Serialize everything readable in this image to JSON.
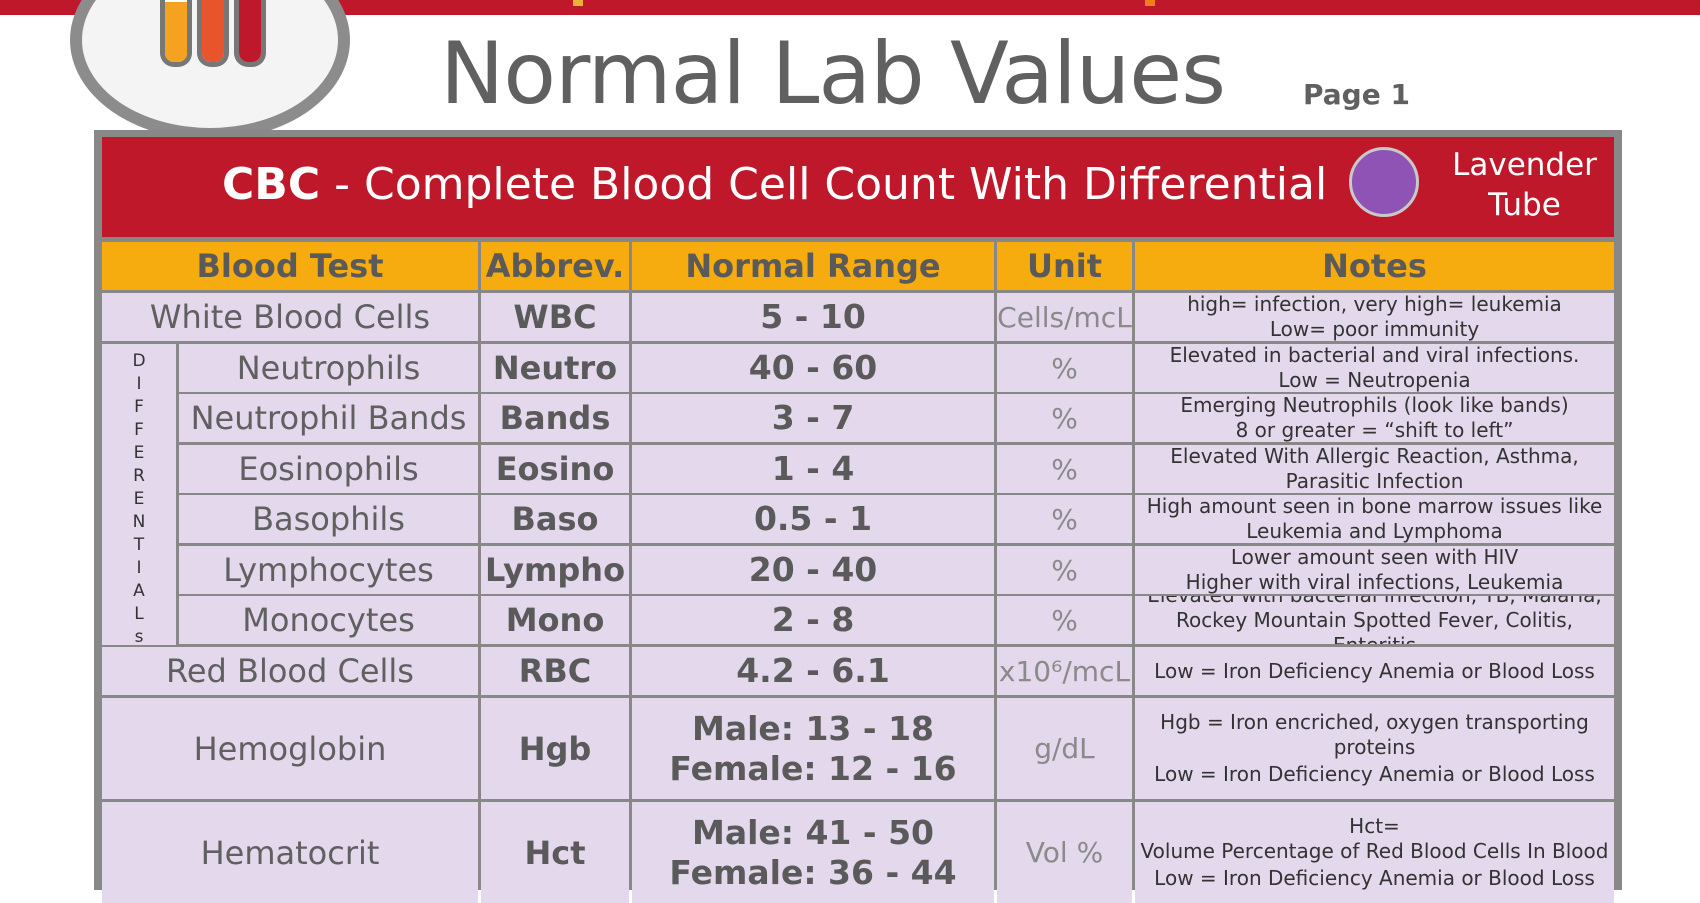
{
  "header": {
    "title": "Normal Lab Values",
    "page_label": "Page 1"
  },
  "banner": {
    "abbr": "CBC",
    "title_rest": " - Complete Blood Cell Count With Differential",
    "tube_line1": "Lavender",
    "tube_line2": "Tube",
    "tube_color": "#8e53b5"
  },
  "columns": {
    "test": "Blood Test",
    "abbr": "Abbrev.",
    "range": "Normal Range",
    "unit": "Unit",
    "notes": "Notes"
  },
  "differentials_label": [
    "D",
    "I",
    "F",
    "F",
    "E",
    "R",
    "E",
    "N",
    "T",
    "I",
    "A",
    "L",
    "s"
  ],
  "rows": [
    {
      "test": "White Blood Cells",
      "abbr": "WBC",
      "range1": "5 - 10",
      "range2": "",
      "unit": "Cells/mcL",
      "note1": "high= infection, very high= leukemia",
      "note2": "Low= poor immunity",
      "note3": ""
    },
    {
      "test": "Neutrophils",
      "abbr": "Neutro",
      "range1": "40 - 60",
      "range2": "",
      "unit": "%",
      "note1": "Elevated in bacterial and viral infections.",
      "note2": "Low = Neutropenia",
      "note3": ""
    },
    {
      "test": "Neutrophil Bands",
      "abbr": "Bands",
      "range1": "3  - 7",
      "range2": "",
      "unit": "%",
      "note1": "Emerging Neutrophils (look like bands)",
      "note2": "8 or greater = “shift to left”",
      "note3": ""
    },
    {
      "test": "Eosinophils",
      "abbr": "Eosino",
      "range1": "1 - 4",
      "range2": "",
      "unit": "%",
      "note1": "Elevated With Allergic Reaction, Asthma,",
      "note2": "Parasitic Infection",
      "note3": ""
    },
    {
      "test": "Basophils",
      "abbr": "Baso",
      "range1": "0.5 - 1",
      "range2": "",
      "unit": "%",
      "note1": "High amount seen in bone marrow issues like",
      "note2": "Leukemia and Lymphoma",
      "note3": ""
    },
    {
      "test": "Lymphocytes",
      "abbr": "Lympho",
      "range1": "20 - 40",
      "range2": "",
      "unit": "%",
      "note1": "Lower amount seen with HIV",
      "note2": "Higher with viral infections, Leukemia",
      "note3": ""
    },
    {
      "test": "Monocytes",
      "abbr": "Mono",
      "range1": "2 - 8",
      "range2": "",
      "unit": "%",
      "note1": "Elevated with bacterial infection, TB, Malaria,",
      "note2": "Rockey Mountain Spotted Fever, Colitis, Enteritis",
      "note3": ""
    },
    {
      "test": "Red Blood Cells",
      "abbr": "RBC",
      "range1": "4.2 - 6.1",
      "range2": "",
      "unit": "x10⁶/mcL",
      "note1": "Low = Iron Deficiency Anemia or Blood Loss",
      "note2": "",
      "note3": ""
    },
    {
      "test": "Hemoglobin",
      "abbr": "Hgb",
      "range1": "Male: 13 - 18",
      "range2": "Female: 12 - 16",
      "unit": "g/dL",
      "note1": "Hgb = Iron encriched, oxygen transporting",
      "note2": "proteins",
      "note3": "Low = Iron Deficiency Anemia or Blood Loss"
    },
    {
      "test": "Hematocrit",
      "abbr": "Hct",
      "range1": "Male: 41 - 50",
      "range2": "Female: 36 - 44",
      "unit": "Vol %",
      "note1": "Hct=",
      "note2": "Volume Percentage of Red Blood Cells In Blood",
      "note3": "Low = Iron Deficiency Anemia or Blood Loss"
    }
  ]
}
